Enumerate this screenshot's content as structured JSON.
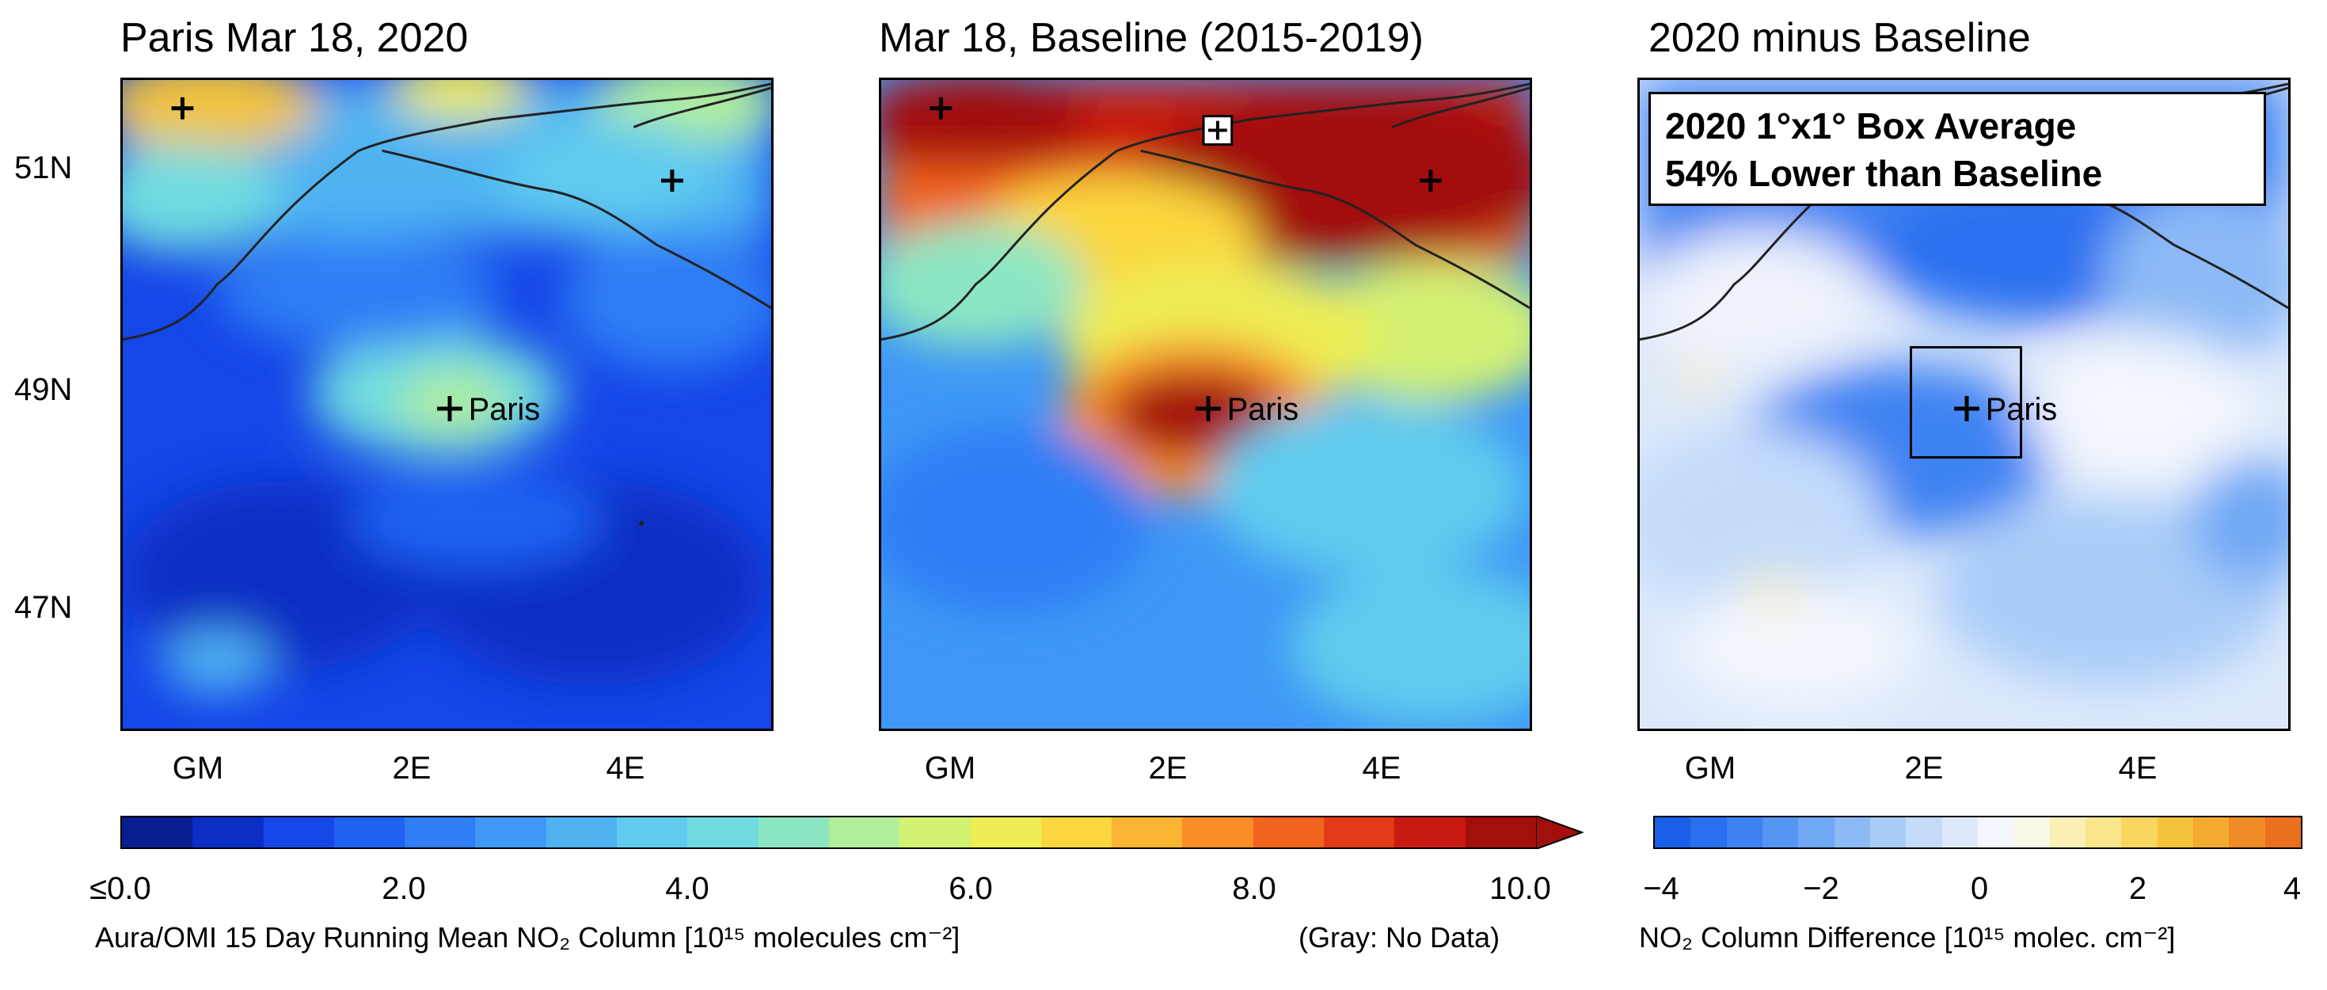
{
  "titles": {
    "panel1": "Paris Mar 18, 2020",
    "panel2": "Mar 18, Baseline (2015-2019)",
    "panel3": "2020 minus Baseline"
  },
  "latitude_labels": [
    "51N",
    "49N",
    "47N"
  ],
  "longitude_labels": [
    "GM",
    "2E",
    "4E"
  ],
  "city": "Paris",
  "box_average": {
    "line1": "2020 1°x1° Box Average",
    "line2": "54% Lower than Baseline"
  },
  "colorbar_no2": {
    "ticks": [
      "≤0.0",
      "2.0",
      "4.0",
      "6.0",
      "8.0",
      "10.0"
    ],
    "caption": "Aura/OMI 15 Day Running Mean NO₂ Column [10¹⁵ molecules cm⁻²]",
    "gray_note": "(Gray: No Data)",
    "colors": [
      "#081d8f",
      "#0b2fc4",
      "#1446e8",
      "#1f62f2",
      "#2f7ef5",
      "#3f98f5",
      "#4fb3f2",
      "#5fcbee",
      "#6fdbe0",
      "#8ce6c2",
      "#b0ee9a",
      "#d3f172",
      "#eeed55",
      "#fbd63e",
      "#fcb532",
      "#f98e28",
      "#f2631e",
      "#e23a17",
      "#c81a10",
      "#a30f0a"
    ]
  },
  "colorbar_diff": {
    "ticks": [
      "−4",
      "−2",
      "0",
      "2",
      "4"
    ],
    "caption": "NO₂ Column Difference [10¹⁵ molec. cm⁻²]",
    "colors": [
      "#1b5fe8",
      "#2a6ff0",
      "#3e82f2",
      "#5595f3",
      "#6fa8f5",
      "#8cbaf6",
      "#a9ccf8",
      "#c4dcfa",
      "#dde9fb",
      "#f2f6fd",
      "#fbf7e8",
      "#fbefb6",
      "#f9e58a",
      "#f8d660",
      "#f6c23c",
      "#f4a930",
      "#f08c26",
      "#ea6f1e"
    ]
  }
}
